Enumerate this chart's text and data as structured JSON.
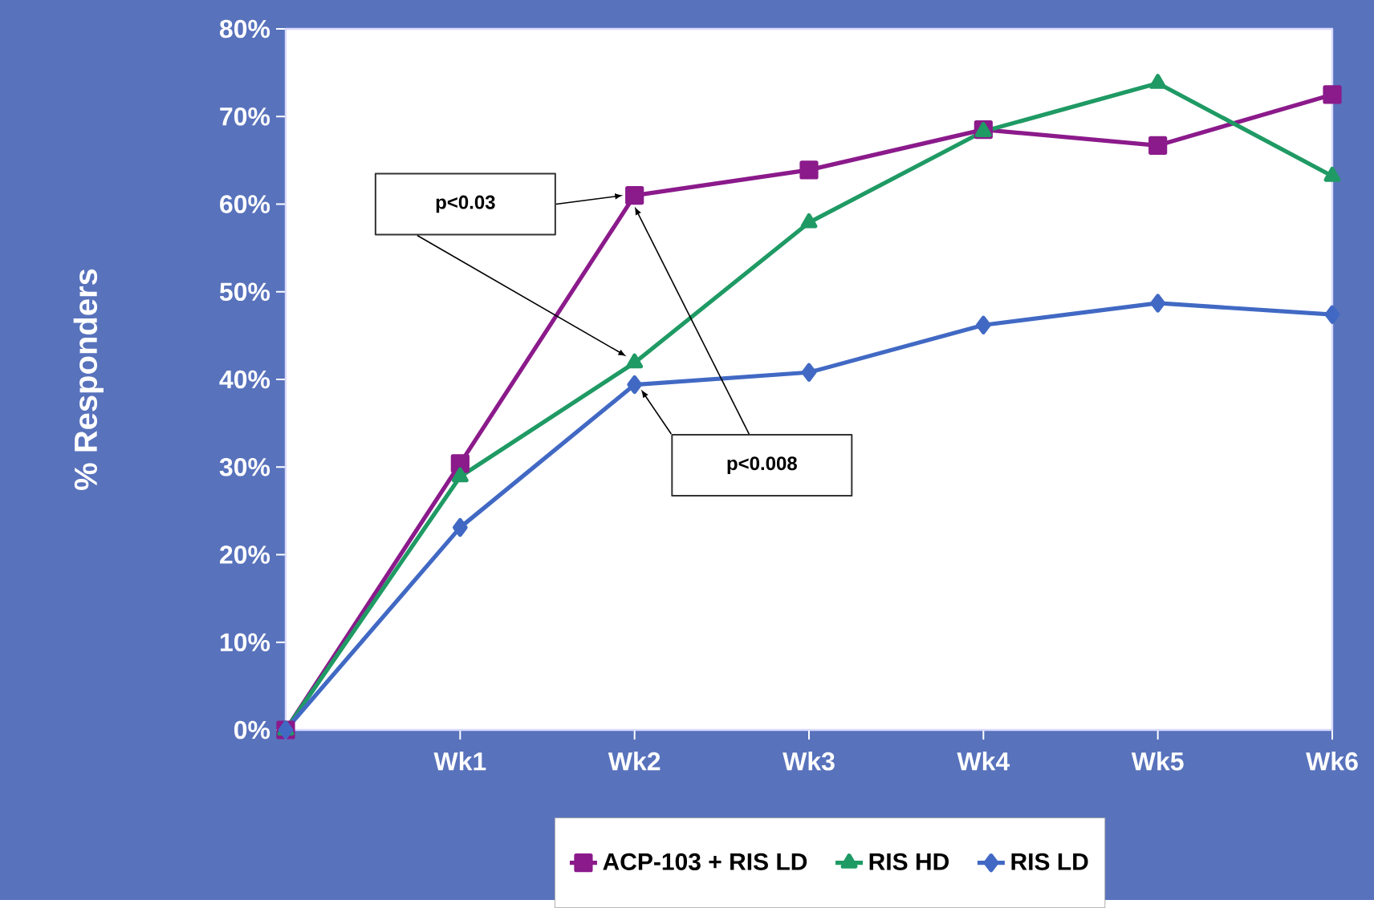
{
  "chart_data": {
    "type": "line",
    "ylabel": "% Responders",
    "categories": [
      null,
      "Wk1",
      "Wk2",
      "Wk3",
      "Wk4",
      "Wk5",
      "Wk6"
    ],
    "series": [
      {
        "name": "ACP-103 + RIS LD",
        "color": "#8b1a8b",
        "marker": "square",
        "values": [
          0,
          30.4,
          61,
          63.9,
          68.5,
          66.7,
          72.5
        ]
      },
      {
        "name": "RIS HD",
        "color": "#1f9a64",
        "marker": "triangle",
        "values": [
          0,
          28.9,
          41.9,
          57.9,
          68.3,
          73.8,
          63.2
        ]
      },
      {
        "name": "RIS LD",
        "color": "#4169c4",
        "marker": "diamond",
        "values": [
          0,
          23.1,
          39.4,
          40.8,
          46.2,
          48.7,
          47.4
        ]
      }
    ],
    "ylim": [
      0,
      80
    ],
    "yticks": [
      {
        "value": 0,
        "label": "0%"
      },
      {
        "value": 10,
        "label": "10%"
      },
      {
        "value": 20,
        "label": "20%"
      },
      {
        "value": 30,
        "label": "30%"
      },
      {
        "value": 40,
        "label": "40%"
      },
      {
        "value": 50,
        "label": "50%"
      },
      {
        "value": 60,
        "label": "60%"
      },
      {
        "value": 70,
        "label": "70%"
      },
      {
        "value": 80,
        "label": "80%"
      }
    ],
    "annotations": [
      "p<0.03",
      "p<0.008"
    ],
    "legend": "bottom"
  }
}
